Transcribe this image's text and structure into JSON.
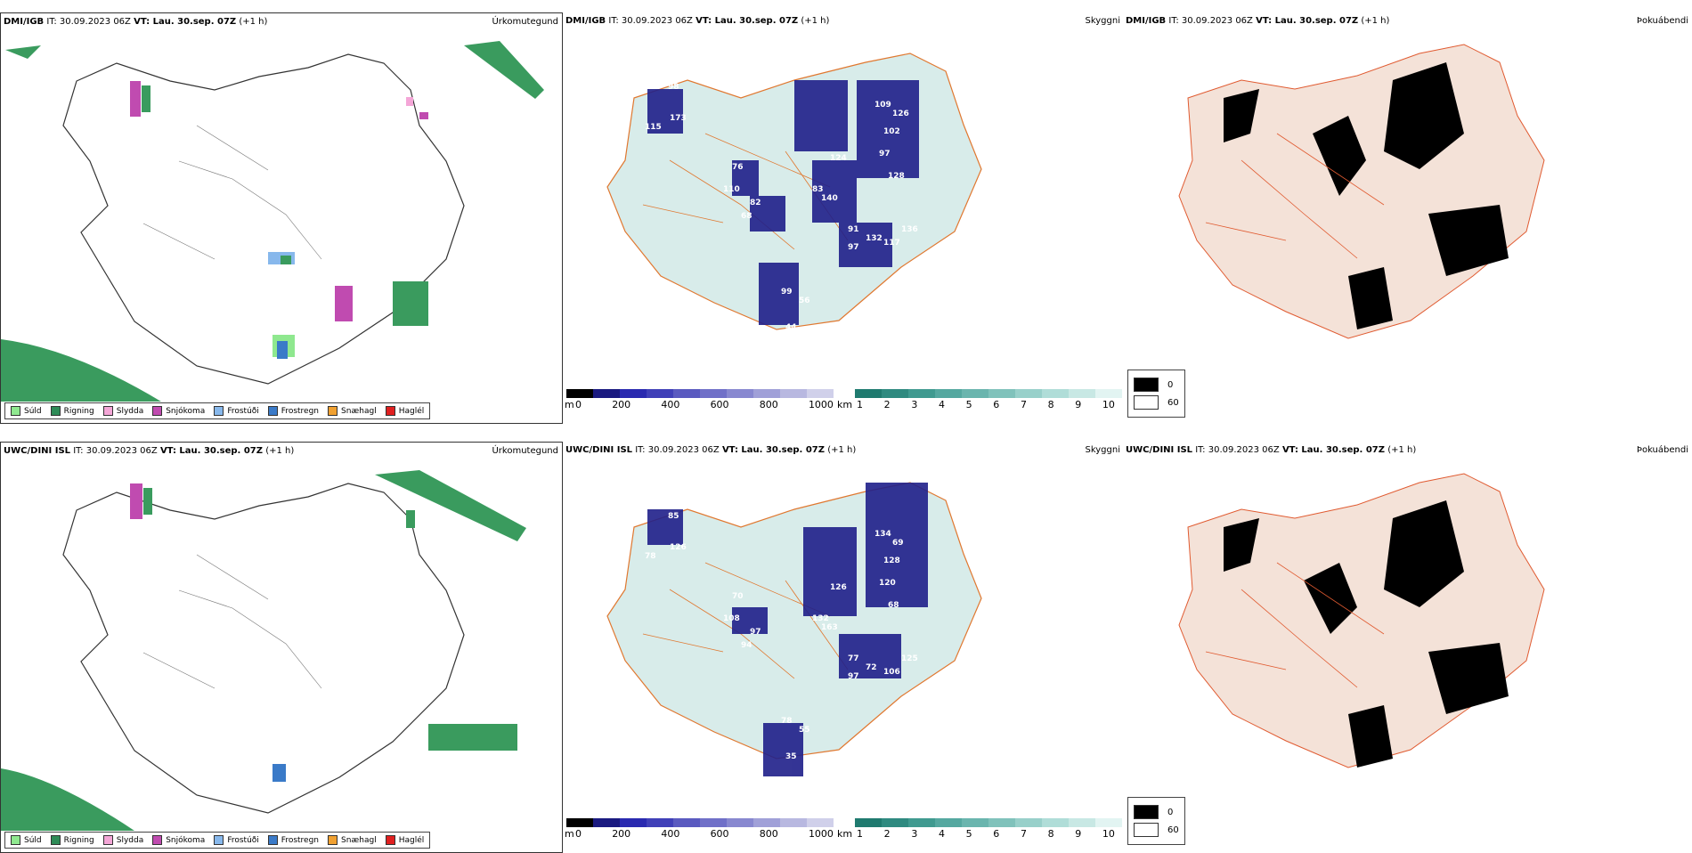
{
  "rows": [
    {
      "precip": {
        "model": "DMI/IGB",
        "it": "IT: 30.09.2023 06Z",
        "vt": "VT: Lau. 30.sep. 07Z",
        "lead": "(+1 h)",
        "varname": "Úrkomutegund"
      },
      "cloud": {
        "model": "DMI/IGB",
        "it": "IT: 30.09.2023 06Z",
        "vt": "VT: Lau. 30.sep. 07Z",
        "lead": "(+1 h)",
        "varname": "Skyggni",
        "labels": [
          "98",
          "115",
          "173",
          "76",
          "110",
          "82",
          "68",
          "83",
          "124",
          "140",
          "109",
          "102",
          "97",
          "126",
          "128",
          "91",
          "132",
          "97",
          "117",
          "136",
          "99",
          "56",
          "44"
        ]
      },
      "fog": {
        "model": "DMI/IGB",
        "it": "IT: 30.09.2023 06Z",
        "vt": "VT: Lau. 30.sep. 07Z",
        "lead": "(+1 h)",
        "varname": "Þokuábendi"
      }
    },
    {
      "precip": {
        "model": "UWC/DINI ISL",
        "it": "IT: 30.09.2023 06Z",
        "vt": "VT: Lau. 30.sep. 07Z",
        "lead": "(+1 h)",
        "varname": "Úrkomutegund"
      },
      "cloud": {
        "model": "UWC/DINI ISL",
        "it": "IT: 30.09.2023 06Z",
        "vt": "VT: Lau. 30.sep. 07Z",
        "lead": "(+1 h)",
        "varname": "Skyggni",
        "labels": [
          "85",
          "78",
          "126",
          "70",
          "108",
          "97",
          "94",
          "132",
          "126",
          "163",
          "134",
          "128",
          "120",
          "69",
          "68",
          "77",
          "72",
          "97",
          "106",
          "125",
          "78",
          "55",
          "35"
        ]
      },
      "fog": {
        "model": "UWC/DINI ISL",
        "it": "IT: 30.09.2023 06Z",
        "vt": "VT: Lau. 30.sep. 07Z",
        "lead": "(+1 h)",
        "varname": "Þokuábendi"
      }
    }
  ],
  "precip_legend": [
    {
      "label": "Súld",
      "color": "#8fe88f"
    },
    {
      "label": "Rigning",
      "color": "#2e8b57"
    },
    {
      "label": "Slydda",
      "color": "#f4a6d7"
    },
    {
      "label": "Snjókoma",
      "color": "#c04bb0"
    },
    {
      "label": "Frostúði",
      "color": "#87b8ec"
    },
    {
      "label": "Frostregn",
      "color": "#3a7ac8"
    },
    {
      "label": "Snæhagl",
      "color": "#f0a030"
    },
    {
      "label": "Haglél",
      "color": "#e02020"
    }
  ],
  "cloudbase": {
    "unit": "m",
    "ticks": [
      "0",
      "200",
      "400",
      "600",
      "800",
      "1000"
    ],
    "colors": [
      "#000000",
      "#1a1a80",
      "#2a2ab0",
      "#4040b8",
      "#5a5ac0",
      "#7070c8",
      "#8888d0",
      "#a0a0d8",
      "#b8b8e0",
      "#d0d0ea"
    ]
  },
  "visibility": {
    "unit": "km",
    "ticks": [
      "1",
      "2",
      "3",
      "4",
      "5",
      "6",
      "7",
      "8",
      "9",
      "10"
    ],
    "colors": [
      "#1f7a6f",
      "#2f8a80",
      "#409a90",
      "#55a8a0",
      "#6ab5ae",
      "#80c2bb",
      "#98d0ca",
      "#b0ddd8",
      "#c8e8e4",
      "#e2f4f2"
    ]
  },
  "fog_legend": [
    {
      "label": "0",
      "color": "#000000"
    },
    {
      "label": "60",
      "color": "#ffffff"
    }
  ]
}
